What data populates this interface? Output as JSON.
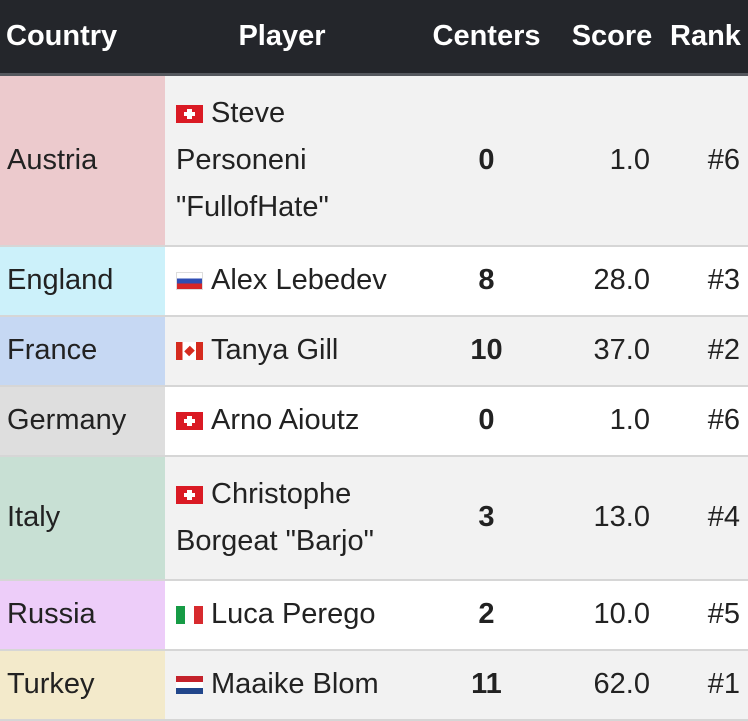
{
  "headers": {
    "country": "Country",
    "player": "Player",
    "centers": "Centers",
    "score": "Score",
    "rank": "Rank"
  },
  "rows": [
    {
      "country": "Austria",
      "country_color": "#eccacd",
      "flag": "switzerland-flag",
      "player": "Steve Personeni \"FullofHate\"",
      "centers": "0",
      "score": "1.0",
      "rank": "#6"
    },
    {
      "country": "England",
      "country_color": "#ccf1fa",
      "flag": "russia-flag",
      "player": "Alex Lebedev",
      "centers": "8",
      "score": "28.0",
      "rank": "#3"
    },
    {
      "country": "France",
      "country_color": "#c6d8f3",
      "flag": "canada-flag",
      "player": "Tanya Gill",
      "centers": "10",
      "score": "37.0",
      "rank": "#2"
    },
    {
      "country": "Germany",
      "country_color": "#dedede",
      "flag": "switzerland-flag",
      "player": "Arno Aioutz",
      "centers": "0",
      "score": "1.0",
      "rank": "#6"
    },
    {
      "country": "Italy",
      "country_color": "#c8e0d4",
      "flag": "switzerland-flag",
      "player": "Christophe Borgeat \"Barjo\"",
      "centers": "3",
      "score": "13.0",
      "rank": "#4"
    },
    {
      "country": "Russia",
      "country_color": "#edcdf9",
      "flag": "italy-flag",
      "player": "Luca Perego",
      "centers": "2",
      "score": "10.0",
      "rank": "#5"
    },
    {
      "country": "Turkey",
      "country_color": "#f3eacb",
      "flag": "netherlands-flag",
      "player": "Maaike Blom",
      "centers": "11",
      "score": "62.0",
      "rank": "#1"
    }
  ]
}
